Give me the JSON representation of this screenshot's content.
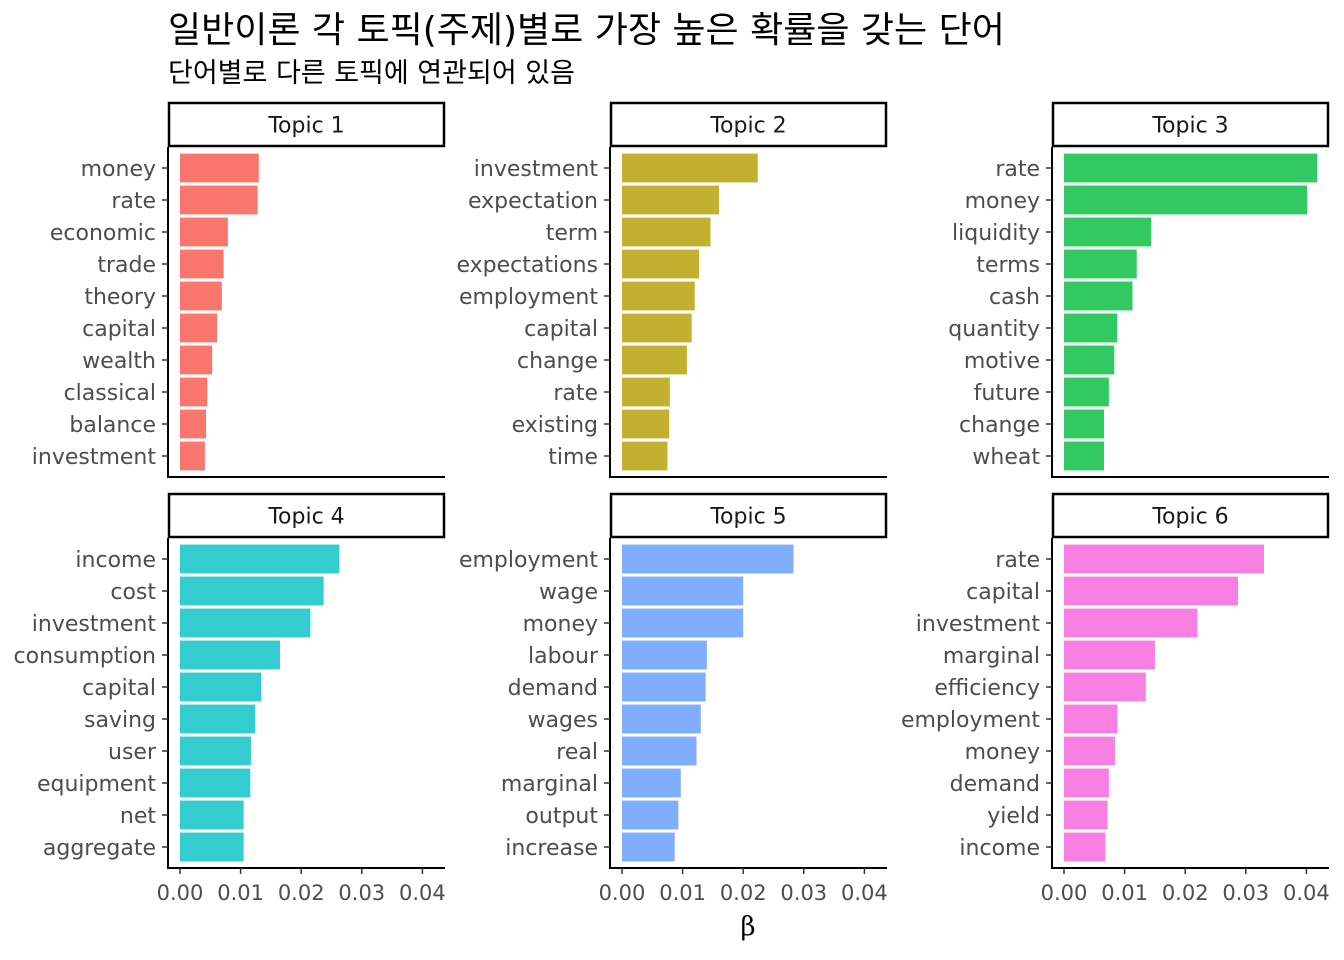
{
  "chart_data": {
    "type": "bar",
    "orientation": "horizontal",
    "title": "일반이론 각 토픽(주제)별로 가장 높은 확률을 갖는 단어",
    "subtitle": "단어별로 다른 토픽에 연관되어 있음",
    "xlabel": "β",
    "xlim": [
      0,
      0.042
    ],
    "xticks": [
      "0.00",
      "0.01",
      "0.02",
      "0.03",
      "0.04"
    ],
    "grid": false,
    "facets": [
      {
        "name": "Topic 1",
        "color": "#F8766D",
        "terms": [
          "money",
          "rate",
          "economic",
          "trade",
          "theory",
          "capital",
          "wealth",
          "classical",
          "balance",
          "investment"
        ],
        "values": [
          0.013,
          0.0128,
          0.0079,
          0.0072,
          0.0069,
          0.0061,
          0.0053,
          0.0045,
          0.0043,
          0.0041
        ]
      },
      {
        "name": "Topic 2",
        "color": "#C4B030",
        "terms": [
          "investment",
          "expectation",
          "term",
          "expectations",
          "employment",
          "capital",
          "change",
          "rate",
          "existing",
          "time"
        ],
        "values": [
          0.0224,
          0.016,
          0.0146,
          0.0127,
          0.012,
          0.0115,
          0.0107,
          0.0079,
          0.0078,
          0.0075
        ]
      },
      {
        "name": "Topic 3",
        "color": "#33C962",
        "terms": [
          "rate",
          "money",
          "liquidity",
          "terms",
          "cash",
          "quantity",
          "motive",
          "future",
          "change",
          "wheat"
        ],
        "values": [
          0.0418,
          0.0401,
          0.0144,
          0.012,
          0.0113,
          0.0088,
          0.0083,
          0.0074,
          0.0066,
          0.0066
        ]
      },
      {
        "name": "Topic 4",
        "color": "#33CCD0",
        "terms": [
          "income",
          "cost",
          "investment",
          "consumption",
          "capital",
          "saving",
          "user",
          "equipment",
          "net",
          "aggregate"
        ],
        "values": [
          0.0263,
          0.0237,
          0.0215,
          0.0165,
          0.0134,
          0.0124,
          0.0117,
          0.0116,
          0.0105,
          0.0105
        ]
      },
      {
        "name": "Topic 5",
        "color": "#80ADFC",
        "terms": [
          "employment",
          "wage",
          "money",
          "labour",
          "demand",
          "wages",
          "real",
          "marginal",
          "output",
          "increase"
        ],
        "values": [
          0.0283,
          0.02,
          0.02,
          0.014,
          0.0138,
          0.013,
          0.0123,
          0.0097,
          0.0093,
          0.0087
        ]
      },
      {
        "name": "Topic 6",
        "color": "#F67FE1",
        "terms": [
          "rate",
          "capital",
          "investment",
          "marginal",
          "efficiency",
          "employment",
          "money",
          "demand",
          "yield",
          "income"
        ],
        "values": [
          0.033,
          0.0287,
          0.022,
          0.015,
          0.0135,
          0.0088,
          0.0084,
          0.0074,
          0.0072,
          0.0068
        ]
      }
    ]
  }
}
